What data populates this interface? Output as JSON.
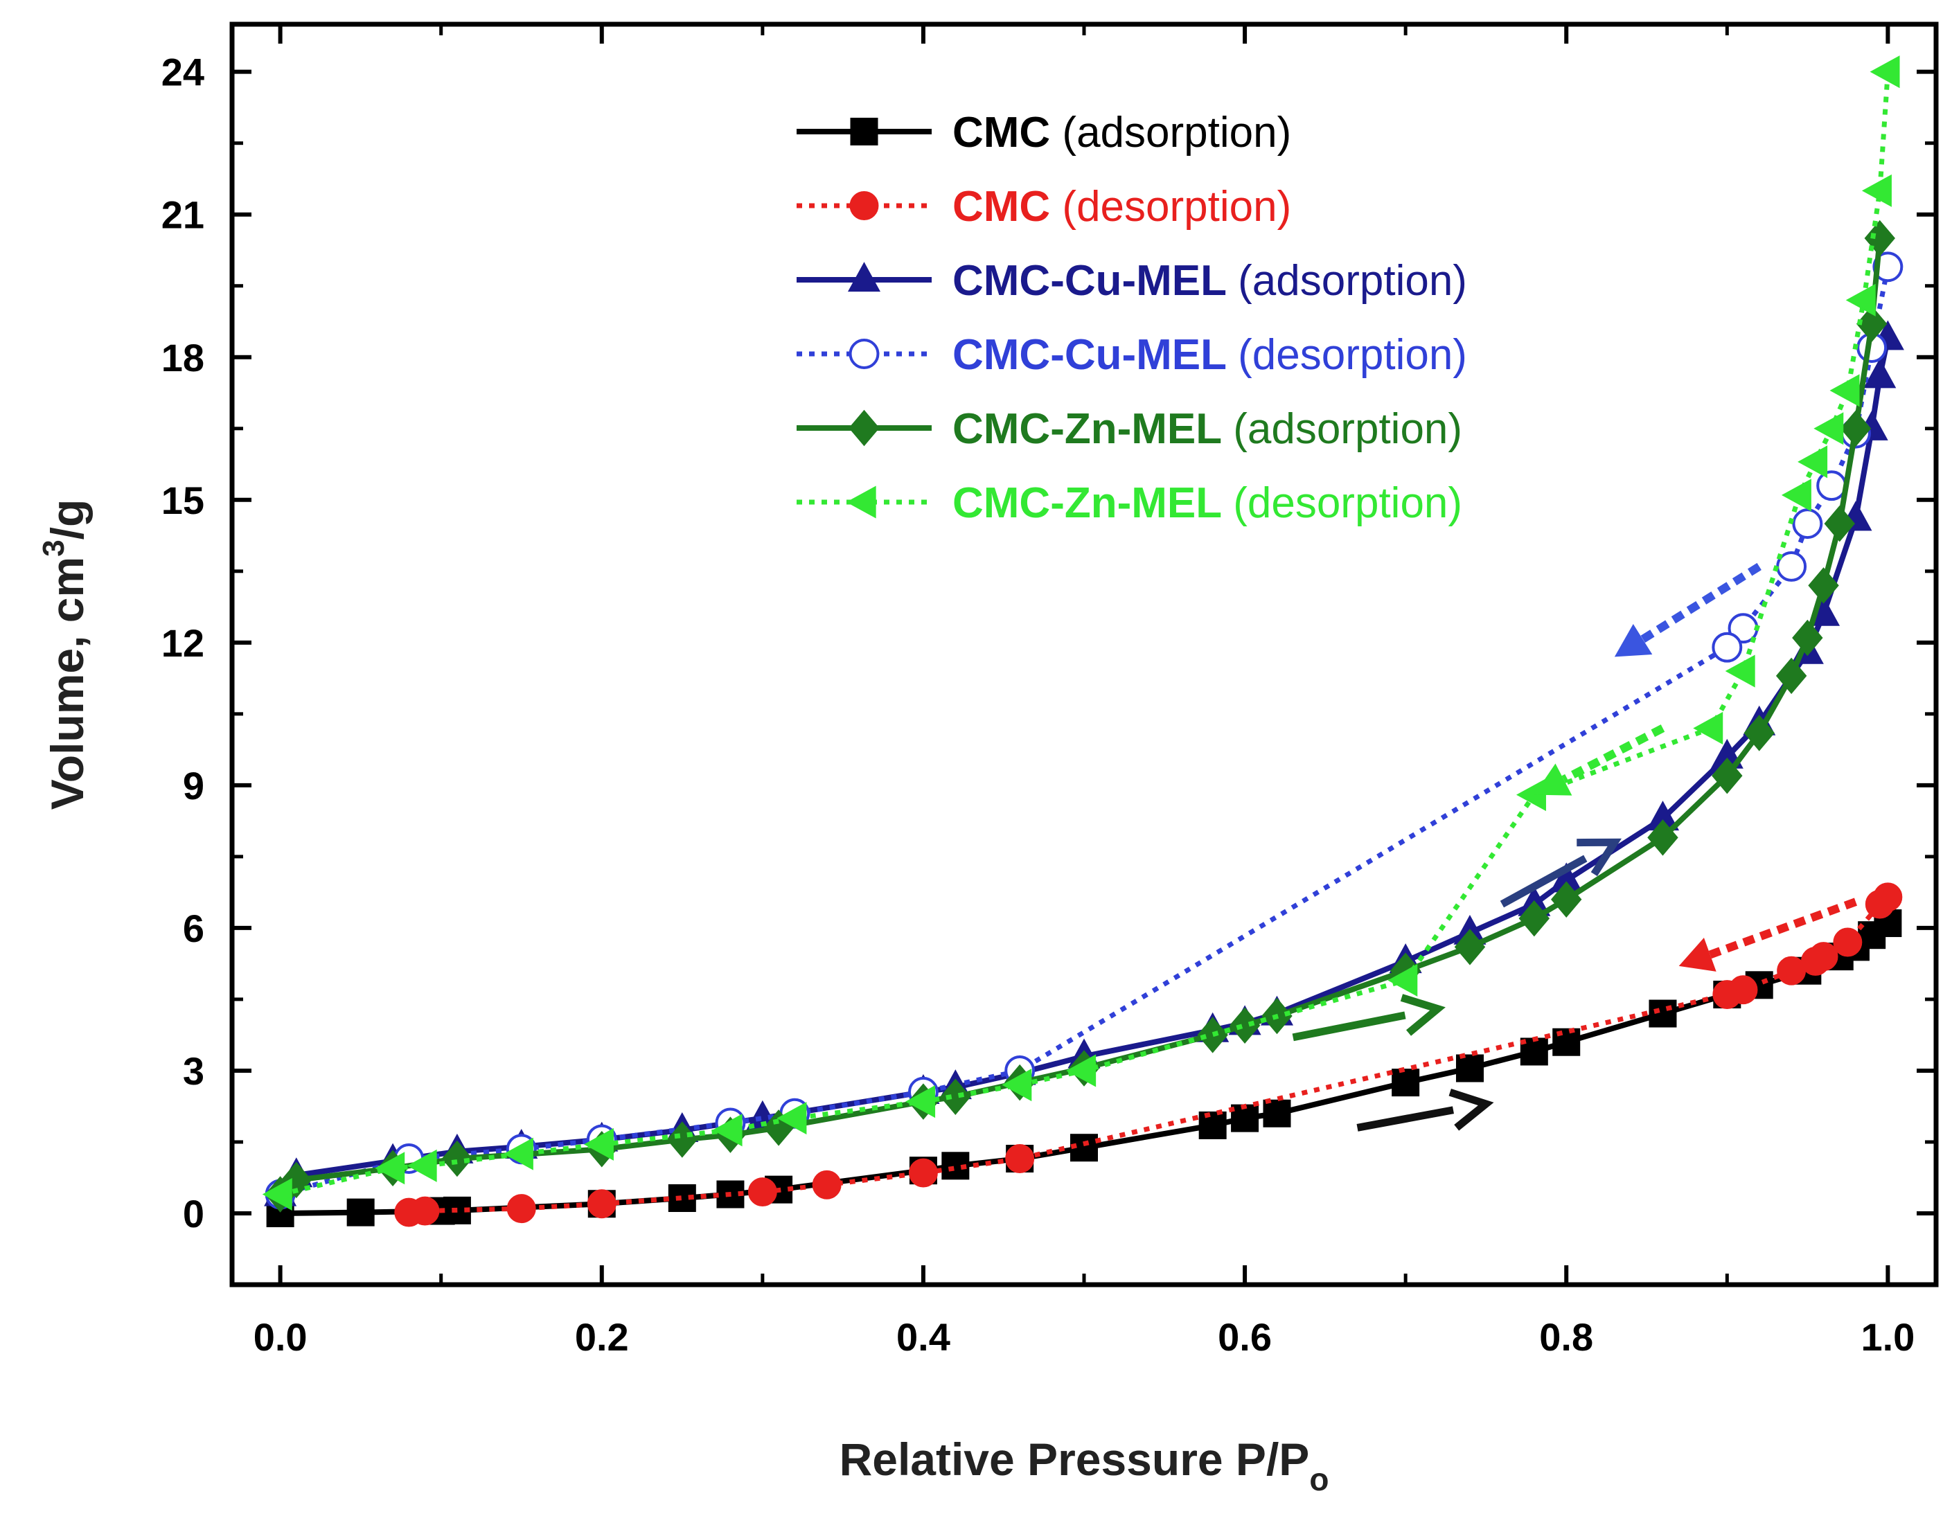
{
  "chart_data": {
    "type": "line",
    "title": "",
    "xlabel": "Relative Pressure P/P",
    "xlabel_sub": "o",
    "ylabel": "Volume, cm",
    "ylabel_sup": "3",
    "ylabel_suffix": "/g",
    "xlim": [
      -0.03,
      1.03
    ],
    "ylim": [
      -1.5,
      25
    ],
    "xticks": [
      "0.0",
      "0.2",
      "0.4",
      "0.6",
      "0.8",
      "1.0"
    ],
    "xtick_values": [
      0.0,
      0.2,
      0.4,
      0.6,
      0.8,
      1.0
    ],
    "yticks": [
      "0",
      "3",
      "6",
      "9",
      "12",
      "15",
      "18",
      "21",
      "24"
    ],
    "ytick_values": [
      0,
      3,
      6,
      9,
      12,
      15,
      18,
      21,
      24
    ],
    "legend_position": "top-right",
    "series": [
      {
        "name": "CMC",
        "mode": "(adsorption)",
        "color": "#000000",
        "dashed": false,
        "marker": "square",
        "filled": true,
        "x": [
          0.0,
          0.05,
          0.1,
          0.11,
          0.2,
          0.25,
          0.28,
          0.31,
          0.4,
          0.42,
          0.46,
          0.5,
          0.58,
          0.6,
          0.62,
          0.7,
          0.74,
          0.78,
          0.8,
          0.86,
          0.9,
          0.92,
          0.95,
          0.97,
          0.98,
          0.99,
          1.0
        ],
        "y": [
          0.0,
          0.02,
          0.05,
          0.06,
          0.2,
          0.32,
          0.4,
          0.5,
          0.9,
          1.0,
          1.15,
          1.38,
          1.85,
          2.0,
          2.1,
          2.75,
          3.05,
          3.4,
          3.6,
          4.2,
          4.6,
          4.8,
          5.1,
          5.4,
          5.6,
          5.85,
          6.1
        ]
      },
      {
        "name": "CMC",
        "mode": "(desorption)",
        "color": "#e8201e",
        "dashed": true,
        "marker": "circle",
        "filled": true,
        "x": [
          1.0,
          0.995,
          0.975,
          0.96,
          0.955,
          0.94,
          0.91,
          0.9,
          0.46,
          0.4,
          0.34,
          0.3,
          0.2,
          0.15,
          0.09,
          0.08
        ],
        "y": [
          6.65,
          6.5,
          5.7,
          5.4,
          5.3,
          5.1,
          4.7,
          4.6,
          1.15,
          0.85,
          0.6,
          0.45,
          0.2,
          0.1,
          0.05,
          0.02
        ]
      },
      {
        "name": "CMC-Cu-MEL",
        "mode": "(adsorption)",
        "color": "#1a1a8c",
        "dashed": false,
        "marker": "triangle-up",
        "filled": true,
        "x": [
          0.0,
          0.01,
          0.07,
          0.11,
          0.15,
          0.2,
          0.25,
          0.3,
          0.4,
          0.42,
          0.46,
          0.5,
          0.58,
          0.6,
          0.62,
          0.7,
          0.74,
          0.78,
          0.8,
          0.86,
          0.9,
          0.92,
          0.95,
          0.96,
          0.98,
          0.99,
          0.995,
          1.0
        ],
        "y": [
          0.4,
          0.8,
          1.1,
          1.3,
          1.4,
          1.55,
          1.75,
          2.0,
          2.55,
          2.65,
          2.95,
          3.3,
          3.85,
          4.0,
          4.2,
          5.3,
          5.9,
          6.5,
          7.0,
          8.3,
          9.6,
          10.3,
          11.8,
          12.6,
          14.6,
          16.5,
          17.6,
          18.4
        ]
      },
      {
        "name": "CMC-Cu-MEL",
        "mode": "(desorption)",
        "color": "#3040d8",
        "dashed": true,
        "marker": "circle",
        "filled": false,
        "x": [
          1.0,
          0.99,
          0.98,
          0.965,
          0.95,
          0.94,
          0.91,
          0.9,
          0.46,
          0.4,
          0.32,
          0.28,
          0.2,
          0.15,
          0.08,
          0.0
        ],
        "y": [
          19.9,
          18.2,
          16.4,
          15.3,
          14.5,
          13.6,
          12.3,
          11.9,
          3.0,
          2.55,
          2.1,
          1.9,
          1.55,
          1.35,
          1.15,
          0.4
        ]
      },
      {
        "name": "CMC-Zn-MEL",
        "mode": "(adsorption)",
        "color": "#1f7a1f",
        "dashed": false,
        "marker": "diamond",
        "filled": true,
        "x": [
          0.0,
          0.01,
          0.07,
          0.11,
          0.2,
          0.25,
          0.28,
          0.31,
          0.4,
          0.42,
          0.46,
          0.5,
          0.58,
          0.6,
          0.62,
          0.7,
          0.74,
          0.78,
          0.8,
          0.86,
          0.9,
          0.92,
          0.94,
          0.95,
          0.96,
          0.97,
          0.98,
          0.99,
          0.995
        ],
        "y": [
          0.4,
          0.7,
          0.95,
          1.15,
          1.35,
          1.55,
          1.65,
          1.8,
          2.35,
          2.45,
          2.75,
          3.05,
          3.75,
          3.95,
          4.15,
          5.1,
          5.6,
          6.2,
          6.6,
          7.9,
          9.2,
          10.1,
          11.3,
          12.1,
          13.2,
          14.5,
          16.5,
          18.7,
          20.5
        ]
      },
      {
        "name": "CMC-Zn-MEL",
        "mode": "(desorption)",
        "color": "#33e833",
        "dashed": true,
        "marker": "triangle-left",
        "filled": true,
        "x": [
          1.0,
          0.995,
          0.985,
          0.975,
          0.965,
          0.955,
          0.945,
          0.91,
          0.89,
          0.78,
          0.7,
          0.5,
          0.46,
          0.4,
          0.32,
          0.28,
          0.2,
          0.15,
          0.09,
          0.07,
          0.0
        ],
        "y": [
          24.0,
          21.5,
          19.2,
          17.3,
          16.5,
          15.8,
          15.1,
          11.4,
          10.2,
          8.8,
          4.9,
          3.0,
          2.7,
          2.35,
          2.0,
          1.75,
          1.45,
          1.25,
          1.0,
          0.95,
          0.4
        ]
      }
    ],
    "annotation_arrows": [
      {
        "color": "#111111",
        "dashed": false,
        "from": [
          0.67,
          1.8
        ],
        "to": [
          0.75,
          2.3
        ]
      },
      {
        "color": "#1f7a1f",
        "dashed": false,
        "from": [
          0.63,
          3.7
        ],
        "to": [
          0.72,
          4.3
        ]
      },
      {
        "color": "#2a3f80",
        "dashed": false,
        "from": [
          0.76,
          6.5
        ],
        "to": [
          0.83,
          7.8
        ]
      },
      {
        "color": "#3a55e0",
        "dashed": true,
        "from": [
          0.92,
          13.6
        ],
        "to": [
          0.83,
          11.7
        ]
      },
      {
        "color": "#33e833",
        "dashed": true,
        "from": [
          0.86,
          10.2
        ],
        "to": [
          0.78,
          8.8
        ]
      },
      {
        "color": "#e8201e",
        "dashed": true,
        "from": [
          0.98,
          6.55
        ],
        "to": [
          0.87,
          5.2
        ]
      }
    ]
  }
}
